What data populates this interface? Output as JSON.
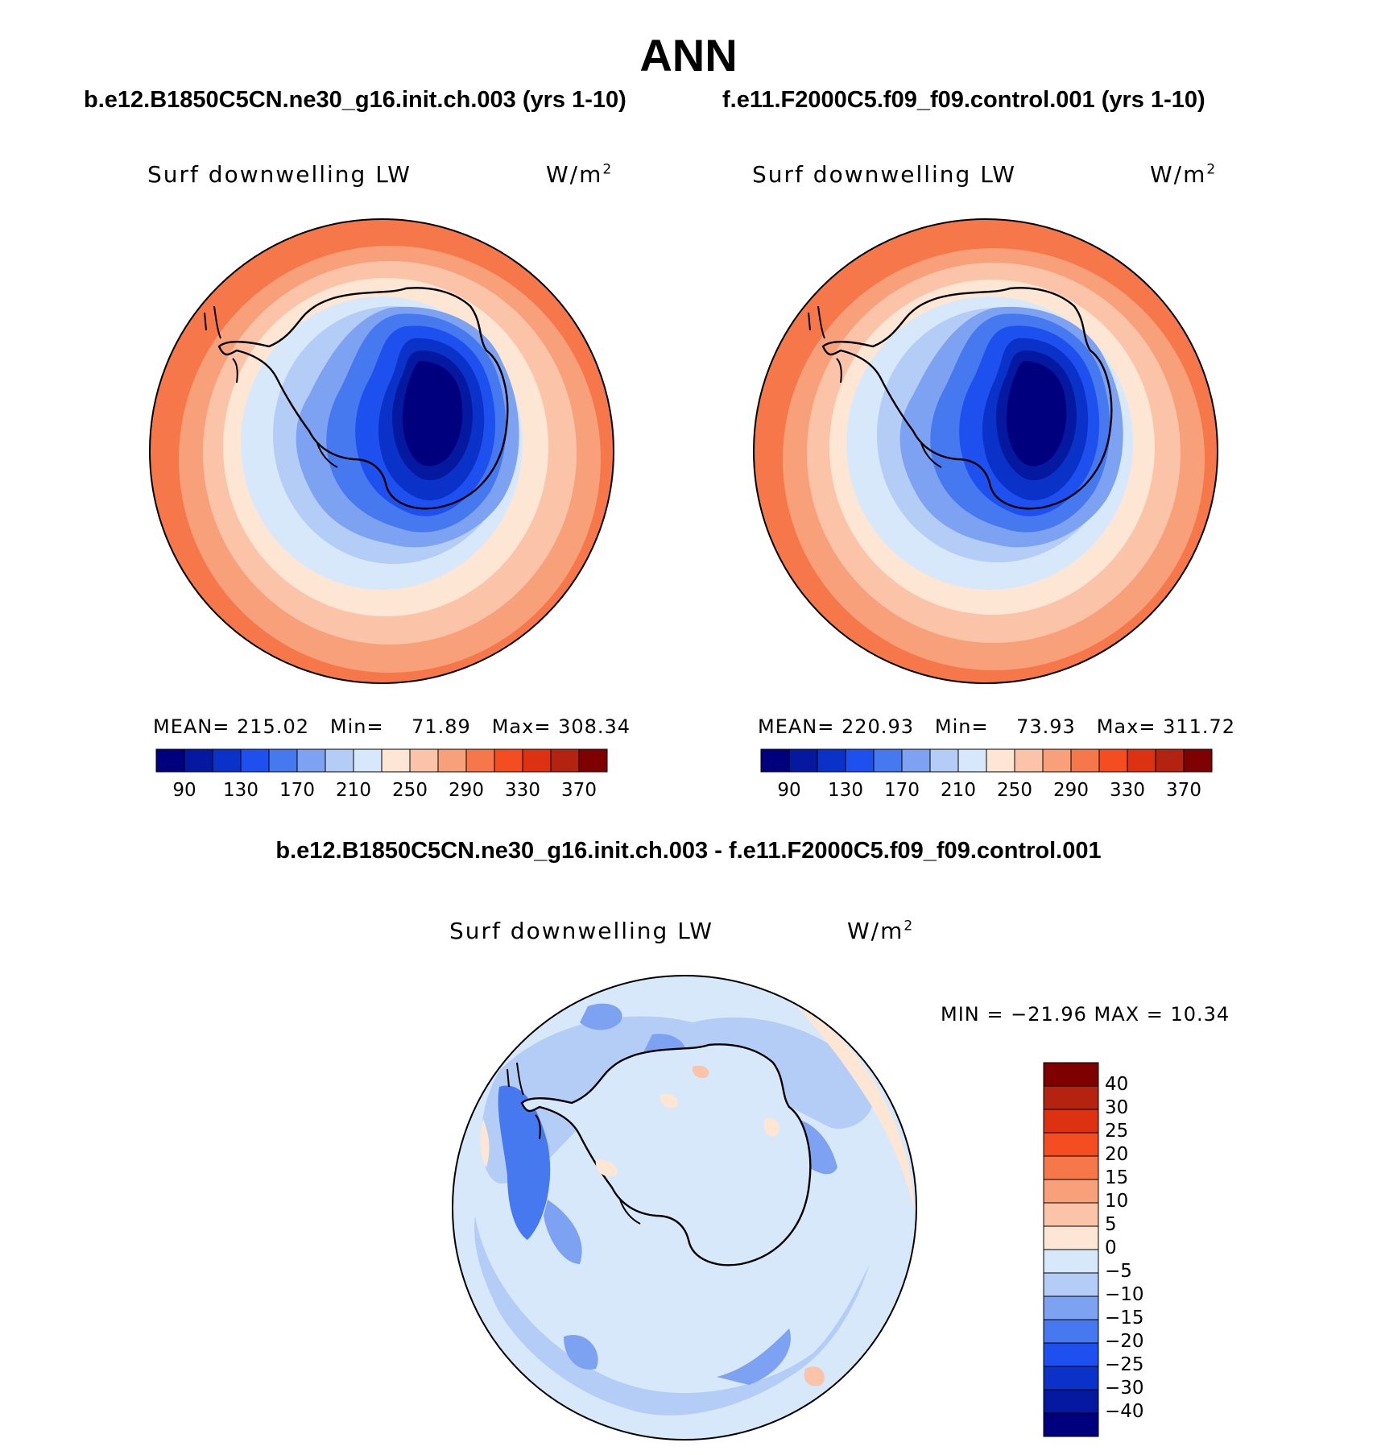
{
  "page_title": "ANN",
  "left_panel": {
    "case_title": "b.e12.B1850C5CN.ne30_g16.init.ch.003 (yrs 1-10)",
    "var_label": "Surf downwelling LW",
    "units_base": "W/m",
    "units_exp": "2",
    "stats": {
      "mean_label": "MEAN=",
      "mean": "215.02",
      "min_label": "Min=",
      "min": "71.89",
      "max_label": "Max=",
      "max": "308.34"
    },
    "colorbar_ticks": [
      "90",
      "130",
      "170",
      "210",
      "250",
      "290",
      "330",
      "370"
    ]
  },
  "right_panel": {
    "case_title": "f.e11.F2000C5.f09_f09.control.001 (yrs 1-10)",
    "var_label": "Surf downwelling LW",
    "units_base": "W/m",
    "units_exp": "2",
    "stats": {
      "mean_label": "MEAN=",
      "mean": "220.93",
      "min_label": "Min=",
      "min": "73.93",
      "max_label": "Max=",
      "max": "311.72"
    },
    "colorbar_ticks": [
      "90",
      "130",
      "170",
      "210",
      "250",
      "290",
      "330",
      "370"
    ]
  },
  "diff_panel": {
    "title": "b.e12.B1850C5CN.ne30_g16.init.ch.003 - f.e11.F2000C5.f09_f09.control.001",
    "var_label": "Surf downwelling LW",
    "units_base": "W/m",
    "units_exp": "2",
    "minmax": "MIN = −21.96 MAX =  10.34",
    "colorbar_ticks": [
      "40",
      "30",
      "25",
      "20",
      "15",
      "10",
      "5",
      "0",
      "−5",
      "−10",
      "−15",
      "−20",
      "−25",
      "−30",
      "−40"
    ]
  },
  "colors": {
    "field_scale": [
      "#00007f",
      "#0418a0",
      "#0a32c8",
      "#1e50f0",
      "#4678f0",
      "#7ea2f2",
      "#b4cdf7",
      "#d8e8fb",
      "#fde6d4",
      "#fbc4a8",
      "#f8a07a",
      "#f6774a",
      "#f54d22",
      "#dd3212",
      "#b42310",
      "#7f0000"
    ],
    "diff_scale": [
      "#00007f",
      "#0418a0",
      "#0a32c8",
      "#1e50f0",
      "#4678f0",
      "#7ea2f2",
      "#b4cdf7",
      "#d8e8fb",
      "#fde6d4",
      "#fbc4a8",
      "#f8a07a",
      "#f6774a",
      "#f54d22",
      "#dd3212",
      "#b42310",
      "#7f0000"
    ]
  }
}
